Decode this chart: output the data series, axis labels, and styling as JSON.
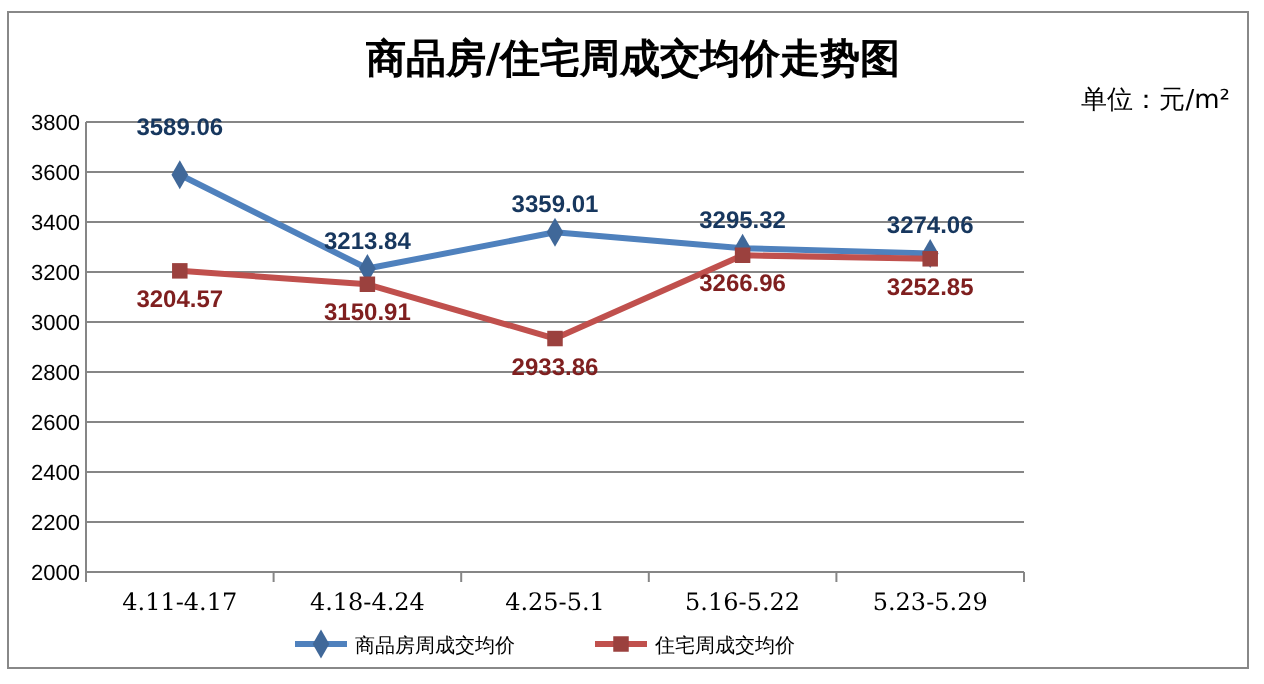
{
  "chart_data": {
    "type": "line",
    "title": "商品房/住宅周成交均价走势图",
    "annotations": [
      "单位：元/m²"
    ],
    "categories": [
      "4.11-4.17",
      "4.18-4.24",
      "4.25-5.1",
      "5.16-5.22",
      "5.23-5.29"
    ],
    "series": [
      {
        "name": "商品房周成交均价",
        "color": "#4f81bd",
        "marker": "diamond",
        "values": [
          3589.06,
          3213.84,
          3359.01,
          3295.32,
          3274.06
        ]
      },
      {
        "name": "住宅周成交均价",
        "color": "#c0504d",
        "marker": "square",
        "values": [
          3204.57,
          3150.91,
          2933.86,
          3266.96,
          3252.85
        ]
      }
    ],
    "ylim": [
      2000,
      3800
    ],
    "yticks": [
      2000,
      2200,
      2400,
      2600,
      2800,
      3000,
      3200,
      3400,
      3600,
      3800
    ],
    "grid": "y",
    "legend": "bottom",
    "data_labels": true
  }
}
